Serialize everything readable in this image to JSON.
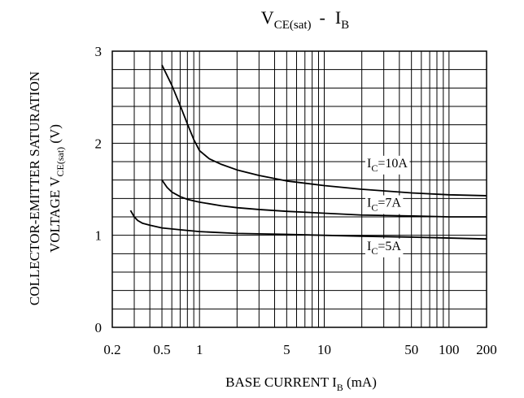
{
  "chart_data": {
    "type": "line",
    "title": {
      "main": "V",
      "main_sub": "CE(sat)",
      "dash": "-",
      "right": "I",
      "right_sub": "B"
    },
    "xlabel": {
      "main": "BASE CURRENT I",
      "sub": "B",
      "unit": " (mA)"
    },
    "ylabel": {
      "line1": "COLLECTOR-EMITTER SATURATION",
      "line2_main": "VOLTAGE V",
      "line2_sub": "CE(sat)",
      "line2_unit": "  (V)"
    },
    "x_scale": "log",
    "xlim": [
      0.2,
      200
    ],
    "ylim": [
      0,
      3
    ],
    "grid": true,
    "x_ticks": [
      {
        "value": 0.2,
        "label": "0.2"
      },
      {
        "value": 0.5,
        "label": "0.5"
      },
      {
        "value": 1,
        "label": "1"
      },
      {
        "value": 5,
        "label": "5"
      },
      {
        "value": 10,
        "label": "10"
      },
      {
        "value": 50,
        "label": "50"
      },
      {
        "value": 100,
        "label": "100"
      },
      {
        "value": 200,
        "label": "200"
      }
    ],
    "y_ticks": [
      {
        "value": 0,
        "label": "0"
      },
      {
        "value": 1,
        "label": "1"
      },
      {
        "value": 2,
        "label": "2"
      },
      {
        "value": 3,
        "label": "3"
      }
    ],
    "series": [
      {
        "name": "I_C=10A",
        "label": {
          "main": "I",
          "sub": "C",
          "rest": "=10A"
        },
        "label_at": [
          22,
          1.74
        ],
        "x": [
          0.5,
          0.6,
          0.7,
          0.8,
          0.9,
          1.0,
          1.2,
          1.5,
          2,
          3,
          5,
          10,
          20,
          50,
          100,
          200
        ],
        "y": [
          2.85,
          2.63,
          2.41,
          2.21,
          2.04,
          1.92,
          1.83,
          1.77,
          1.71,
          1.65,
          1.59,
          1.54,
          1.5,
          1.46,
          1.44,
          1.43
        ]
      },
      {
        "name": "I_C=7A",
        "label": {
          "main": "I",
          "sub": "C",
          "rest": "=7A"
        },
        "label_at": [
          22,
          1.31
        ],
        "x": [
          0.5,
          0.55,
          0.6,
          0.7,
          0.8,
          1.0,
          1.5,
          2,
          3,
          5,
          10,
          20,
          50,
          100,
          200
        ],
        "y": [
          1.6,
          1.52,
          1.47,
          1.42,
          1.39,
          1.36,
          1.32,
          1.3,
          1.28,
          1.26,
          1.24,
          1.22,
          1.21,
          1.2,
          1.2
        ]
      },
      {
        "name": "I_C=5A",
        "label": {
          "main": "I",
          "sub": "C",
          "rest": "=5A"
        },
        "label_at": [
          22,
          0.84
        ],
        "x": [
          0.28,
          0.3,
          0.32,
          0.35,
          0.4,
          0.5,
          0.7,
          1.0,
          2,
          5,
          10,
          20,
          50,
          100,
          200
        ],
        "y": [
          1.27,
          1.2,
          1.16,
          1.13,
          1.11,
          1.08,
          1.06,
          1.04,
          1.02,
          1.01,
          1.0,
          0.99,
          0.98,
          0.97,
          0.96
        ]
      }
    ]
  }
}
